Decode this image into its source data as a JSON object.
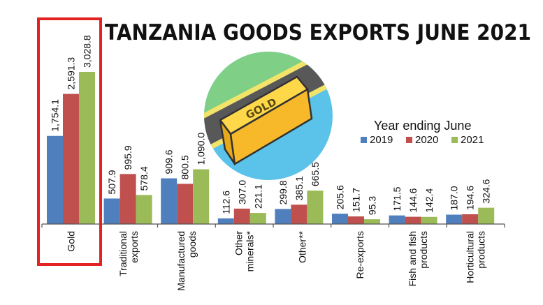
{
  "chart_data": {
    "type": "bar",
    "title": "TANZANIA GOODS EXPORTS JUNE 2021",
    "legend_title": "Year ending June",
    "legend_position": "right",
    "categories": [
      [
        "Gold"
      ],
      [
        "Traditional",
        "exports"
      ],
      [
        "Manufactured",
        "goods"
      ],
      [
        "Other",
        "minerals*"
      ],
      [
        "Other**"
      ],
      [
        "Re-exports"
      ],
      [
        "Fish and fish",
        "products"
      ],
      [
        "Horticultural",
        "products"
      ]
    ],
    "series": [
      {
        "name": "2019",
        "color": "#4f7fbd",
        "values": [
          1754.1,
          507.9,
          909.6,
          112.6,
          299.8,
          205.6,
          171.5,
          187.0
        ],
        "labels": [
          "1,754.1",
          "507.9",
          "909.6",
          "112.6",
          "299.8",
          "205.6",
          "171.5",
          "187.0"
        ]
      },
      {
        "name": "2020",
        "color": "#c0504d",
        "values": [
          2591.3,
          995.9,
          800.5,
          307.0,
          385.1,
          151.7,
          144.6,
          194.6
        ],
        "labels": [
          "2,591.3",
          "995.9",
          "800.5",
          "307.0",
          "385.1",
          "151.7",
          "144.6",
          "194.6"
        ]
      },
      {
        "name": "2021",
        "color": "#9bbb59",
        "values": [
          3028.8,
          578.4,
          1090.0,
          221.1,
          665.5,
          95.3,
          142.4,
          324.6
        ],
        "labels": [
          "3,028.8",
          "578.4",
          "1,090.0",
          "221.1",
          "665.5",
          "95.3",
          "142.4",
          "324.6"
        ]
      }
    ],
    "ylim": [
      0,
      3028.8
    ],
    "grid": false,
    "highlight": {
      "category_index": 0,
      "color": "#e32222"
    }
  },
  "illustration": {
    "text": "GOLD",
    "icon": "gold-bar-icon"
  }
}
